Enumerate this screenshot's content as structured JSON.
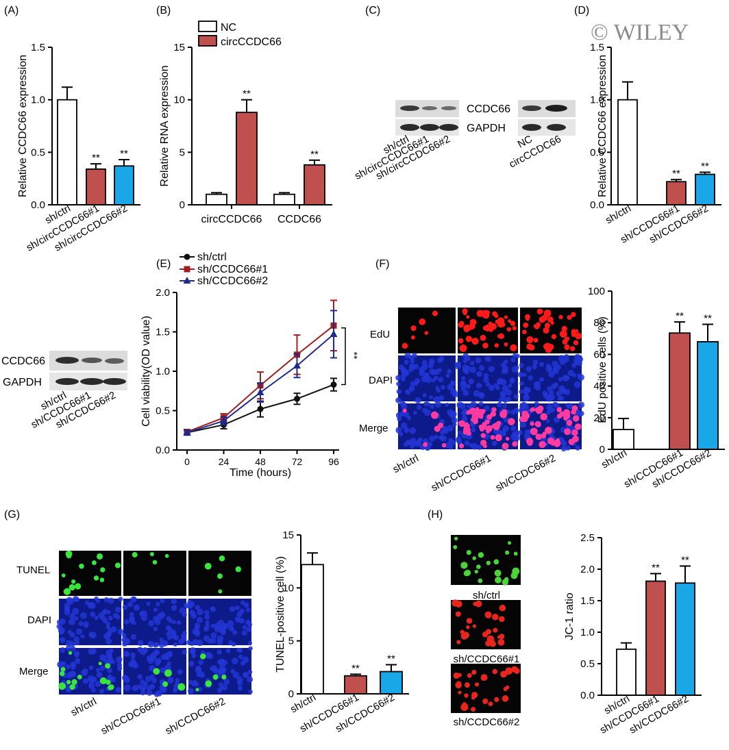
{
  "watermark": "© WILEY",
  "colors": {
    "white_bar": "#ffffff",
    "red": "#c0504d",
    "blue": "#1aa7e8",
    "line_black": "#111111",
    "line_red": "#a01e1e",
    "line_blue": "#1f2a8c"
  },
  "panels": {
    "A": "(A)",
    "B": "(B)",
    "C": "(C)",
    "D": "(D)",
    "E": "(E)",
    "F": "(F)",
    "G": "(G)",
    "H": "(H)"
  },
  "blots": {
    "c_left": {
      "bands": [
        "CCDC66",
        "GAPDH"
      ],
      "lanes": [
        "sh/ctrl",
        "sh/circCCDC66#1",
        "sh/circCCDC66#2"
      ]
    },
    "c_right": {
      "lanes": [
        "NC",
        "circCCDC66"
      ]
    },
    "d_blot": {
      "bands": [
        "CCDC66",
        "GAPDH"
      ],
      "lanes": [
        "sh/ctrl",
        "sh/CCDC66#1",
        "sh/CCDC66#2"
      ]
    }
  },
  "micro": {
    "F": {
      "rows": [
        "EdU",
        "DAPI",
        "Merge"
      ],
      "cols": [
        "sh/ctrl",
        "sh/CCDC66#1",
        "sh/CCDC66#2"
      ]
    },
    "G": {
      "rows": [
        "TUNEL",
        "DAPI",
        "Merge"
      ],
      "cols": [
        "sh/ctrl",
        "sh/CCDC66#1",
        "sh/CCDC66#2"
      ]
    },
    "H": {
      "labels": [
        "sh/ctrl",
        "sh/CCDC66#1",
        "sh/CCDC66#2"
      ]
    }
  },
  "chart_data": [
    {
      "id": "A",
      "type": "bar",
      "categories": [
        "sh/ctrl",
        "sh/circCCDC66#1",
        "sh/circCCDC66#2"
      ],
      "values": [
        1.0,
        0.34,
        0.37
      ],
      "errors": [
        0.12,
        0.05,
        0.06
      ],
      "sig": [
        "",
        "**",
        "**"
      ],
      "ylabel": "Relative CCDC66 expression",
      "ylim": [
        0,
        1.5
      ],
      "yticks": [
        "0.0",
        "0.5",
        "1.0",
        "1.5"
      ],
      "colors": [
        "white",
        "red",
        "blue"
      ]
    },
    {
      "id": "B",
      "type": "bar",
      "categories": [
        "circCCDC66",
        "CCDC66"
      ],
      "series": [
        {
          "name": "NC",
          "values": [
            1.0,
            1.0
          ],
          "errors": [
            0.15,
            0.15
          ]
        },
        {
          "name": "circCCDC66",
          "values": [
            8.8,
            3.8
          ],
          "errors": [
            1.2,
            0.45
          ]
        }
      ],
      "sig": [
        "**",
        "**"
      ],
      "ylabel": "Relative RNA expression",
      "ylim": [
        0,
        15
      ],
      "yticks": [
        "0",
        "5",
        "10",
        "15"
      ]
    },
    {
      "id": "D",
      "type": "bar",
      "categories": [
        "sh/ctrl",
        "sh/CCDC66#1",
        "sh/CCDC66#2"
      ],
      "values": [
        1.0,
        0.22,
        0.29
      ],
      "errors": [
        0.17,
        0.02,
        0.02
      ],
      "sig": [
        "",
        "**",
        "**"
      ],
      "ylabel": "Relative CCDC66 expression",
      "ylim": [
        0,
        1.5
      ],
      "yticks": [
        "0.0",
        "0.5",
        "1.0",
        "1.5"
      ],
      "colors": [
        "white",
        "red",
        "blue"
      ]
    },
    {
      "id": "E",
      "type": "line",
      "x": [
        0,
        24,
        48,
        72,
        96
      ],
      "xticks": [
        "0",
        "24",
        "48",
        "72",
        "96"
      ],
      "series": [
        {
          "name": "sh/ctrl",
          "values": [
            0.22,
            0.32,
            0.52,
            0.65,
            0.83
          ],
          "errors": [
            0.03,
            0.05,
            0.1,
            0.07,
            0.08
          ]
        },
        {
          "name": "sh/CCDC66#1",
          "values": [
            0.23,
            0.41,
            0.82,
            1.21,
            1.58
          ],
          "errors": [
            0.03,
            0.05,
            0.17,
            0.25,
            0.32
          ]
        },
        {
          "name": "sh/CCDC66#2",
          "values": [
            0.22,
            0.37,
            0.73,
            1.07,
            1.47
          ],
          "errors": [
            0.03,
            0.05,
            0.12,
            0.15,
            0.3
          ]
        }
      ],
      "sig": "**",
      "xlabel": "Time (hours)",
      "ylabel": "Cell viability(OD value)",
      "ylim": [
        0,
        2.0
      ],
      "yticks": [
        "0.0",
        "0.5",
        "1.0",
        "1.5",
        "2.0"
      ]
    },
    {
      "id": "F",
      "type": "bar",
      "categories": [
        "sh/ctrl",
        "sh/CCDC66#1",
        "sh/CCDC66#2"
      ],
      "values": [
        12.5,
        73.5,
        68.0
      ],
      "errors": [
        7,
        7,
        11
      ],
      "sig": [
        "",
        "**",
        "**"
      ],
      "ylabel": "EdU positive cells (%)",
      "ylim": [
        0,
        100
      ],
      "yticks": [
        "0",
        "20",
        "40",
        "60",
        "80",
        "100"
      ],
      "colors": [
        "white",
        "red",
        "blue"
      ]
    },
    {
      "id": "G",
      "type": "bar",
      "categories": [
        "sh/ctrl",
        "sh/CCDC66#1",
        "sh/CCDC66#2"
      ],
      "values": [
        12.2,
        1.7,
        2.1
      ],
      "errors": [
        1.1,
        0.15,
        0.65
      ],
      "sig": [
        "",
        "**",
        "**"
      ],
      "ylabel": "TUNEL-positive cell (%)",
      "ylim": [
        0,
        15
      ],
      "yticks": [
        "0",
        "5",
        "10",
        "15"
      ],
      "colors": [
        "white",
        "red",
        "blue"
      ]
    },
    {
      "id": "H",
      "type": "bar",
      "categories": [
        "sh/ctrl",
        "sh/CCDC66#1",
        "sh/CCDC66#2"
      ],
      "values": [
        0.73,
        1.81,
        1.78
      ],
      "errors": [
        0.1,
        0.12,
        0.27
      ],
      "sig": [
        "",
        "**",
        "**"
      ],
      "ylabel": "JC-1 ratio",
      "ylim": [
        0,
        2.5
      ],
      "yticks": [
        "0.0",
        "0.5",
        "1.0",
        "1.5",
        "2.0",
        "2.5"
      ],
      "colors": [
        "white",
        "red",
        "blue"
      ]
    }
  ]
}
